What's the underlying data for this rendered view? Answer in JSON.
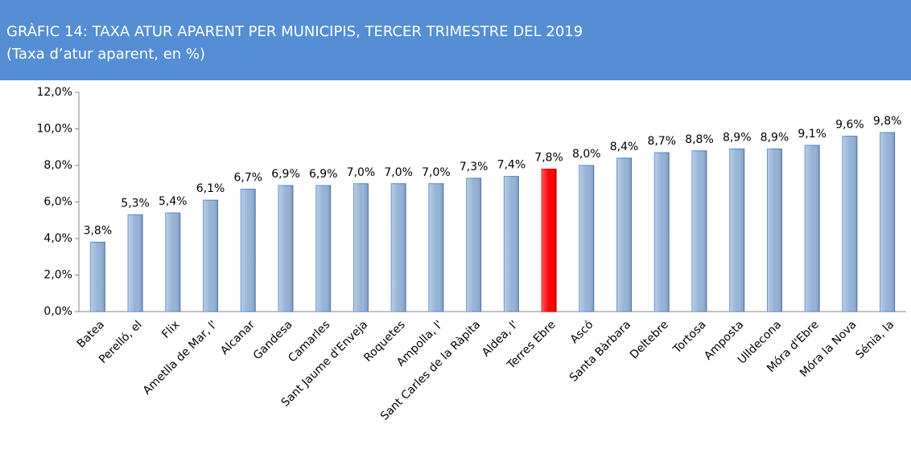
{
  "chart_data": {
    "type": "bar",
    "title": "GRÀFIC 14: TAXA ATUR APARENT PER MUNICIPIS, TERCER TRIMESTRE DEL 2019",
    "subtitle": "(Taxa d’atur aparent, en %)",
    "categories": [
      "Batea",
      "Perelló, el",
      "Flix",
      "Ametlla de Mar, l'",
      "Alcanar",
      "Gandesa",
      "Camarles",
      "Sant Jaume d'Enveja",
      "Roquetes",
      "Ampolla, l'",
      "Sant Carles de la Ràpita",
      "Aldea, l'",
      "Terres Ebre",
      "Ascó",
      "Santa Bàrbara",
      "Deltebre",
      "Tortosa",
      "Amposta",
      "Ulldecona",
      "Móra d'Ebre",
      "Móra la Nova",
      "Sénia, la"
    ],
    "values": [
      3.8,
      5.3,
      5.4,
      6.1,
      6.7,
      6.9,
      6.9,
      7.0,
      7.0,
      7.0,
      7.3,
      7.4,
      7.8,
      8.0,
      8.4,
      8.7,
      8.8,
      8.9,
      8.9,
      9.1,
      9.6,
      9.8
    ],
    "value_labels": [
      "3,8%",
      "5,3%",
      "5,4%",
      "6,1%",
      "6,7%",
      "6,9%",
      "6,9%",
      "7,0%",
      "7,0%",
      "7,0%",
      "7,3%",
      "7,4%",
      "7,8%",
      "8,0%",
      "8,4%",
      "8,7%",
      "8,8%",
      "8,9%",
      "8,9%",
      "9,1%",
      "9,6%",
      "9,8%"
    ],
    "colors": [
      "#95b3d7",
      "#95b3d7",
      "#95b3d7",
      "#95b3d7",
      "#95b3d7",
      "#95b3d7",
      "#95b3d7",
      "#95b3d7",
      "#95b3d7",
      "#95b3d7",
      "#95b3d7",
      "#95b3d7",
      "#ff0000",
      "#95b3d7",
      "#95b3d7",
      "#95b3d7",
      "#95b3d7",
      "#95b3d7",
      "#95b3d7",
      "#95b3d7",
      "#95b3d7",
      "#95b3d7"
    ],
    "ylim": [
      0,
      12
    ],
    "yticks": [
      {
        "value": 0,
        "label": "0,0%"
      },
      {
        "value": 2,
        "label": "2,0%"
      },
      {
        "value": 4,
        "label": "4,0%"
      },
      {
        "value": 6,
        "label": "6,0%"
      },
      {
        "value": 8,
        "label": "8,0%"
      },
      {
        "value": 10,
        "label": "10,0%"
      },
      {
        "value": 12,
        "label": "12,0%"
      }
    ],
    "grid": false
  }
}
